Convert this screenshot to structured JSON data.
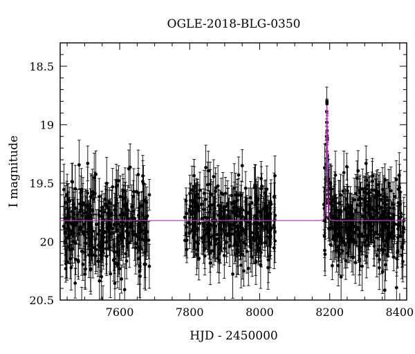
{
  "chart_data": {
    "type": "scatter",
    "title": "OGLE-2018-BLG-0350",
    "xlabel": "HJD - 2450000",
    "ylabel": "I magnitude",
    "xlim": [
      7430,
      8420
    ],
    "ylim": [
      20.5,
      18.3
    ],
    "y_inverted": true,
    "x_ticks": [
      7600,
      7800,
      8000,
      8200,
      8400
    ],
    "x_tick_labels": [
      "7600",
      "7800",
      "8000",
      "8200",
      "8400"
    ],
    "y_ticks": [
      18.5,
      19,
      19.5,
      20,
      20.5
    ],
    "y_tick_labels": [
      "18.5",
      "19",
      "19.5",
      "20",
      "20.5"
    ],
    "grid": false,
    "legend": "none",
    "colors": {
      "points": "#000000",
      "model": "#cc33cc",
      "frame": "#000000"
    },
    "baseline_magnitude": 19.82,
    "event": {
      "peak_time": 8192,
      "peak_magnitude": 18.84,
      "tE": 3.0,
      "u0": 0.32
    },
    "series": [
      {
        "kind": "observations",
        "error_bars": true,
        "seasons": [
          {
            "t_start": 7440,
            "t_end": 7685,
            "n_points": 330,
            "mean_mag": 19.87,
            "scatter": 0.2,
            "mag_err": 0.16
          },
          {
            "t_start": 7785,
            "t_end": 8045,
            "n_points": 340,
            "mean_mag": 19.84,
            "scatter": 0.18,
            "mag_err": 0.15
          },
          {
            "t_start": 8182,
            "t_end": 8412,
            "n_points": 360,
            "mean_mag": 19.84,
            "scatter": 0.19,
            "mag_err": 0.15
          }
        ],
        "peak_points": [
          {
            "x": 8192.0,
            "y": 18.8,
            "err": 0.02
          },
          {
            "x": 8192.2,
            "y": 18.81,
            "err": 0.02
          },
          {
            "x": 8191.4,
            "y": 18.98,
            "err": 0.03
          },
          {
            "x": 8192.6,
            "y": 19.05,
            "err": 0.03
          },
          {
            "x": 8190.8,
            "y": 19.1,
            "err": 0.03
          },
          {
            "x": 8193.1,
            "y": 19.13,
            "err": 0.04
          },
          {
            "x": 8190.6,
            "y": 19.17,
            "err": 0.04
          },
          {
            "x": 8193.6,
            "y": 19.3,
            "err": 0.05
          },
          {
            "x": 8189.8,
            "y": 19.45,
            "err": 0.06
          },
          {
            "x": 8194.3,
            "y": 19.48,
            "err": 0.06
          },
          {
            "x": 8195.0,
            "y": 19.56,
            "err": 0.08
          },
          {
            "x": 8189.0,
            "y": 19.6,
            "err": 0.08
          }
        ]
      },
      {
        "kind": "model",
        "name": "",
        "curve": "point-lens"
      }
    ]
  }
}
